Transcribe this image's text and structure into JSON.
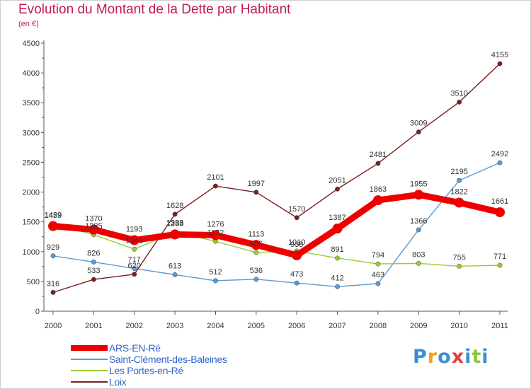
{
  "title": "Evolution du Montant de la Dette par Habitant",
  "subtitle": "(en €)",
  "logo": {
    "letters": [
      "P",
      "r",
      "o",
      "x",
      "i",
      "t",
      "i"
    ],
    "colors": [
      "#3a8fd4",
      "#f0a020",
      "#3a8fd4",
      "#e04040",
      "#3a8fd4",
      "#8cc63f",
      "#3a8fd4"
    ]
  },
  "chart_data": {
    "type": "line",
    "title": "Evolution du Montant de la Dette par Habitant",
    "subtitle": "(en €)",
    "xlabel": "",
    "ylabel": "",
    "x": [
      "2000",
      "2001",
      "2002",
      "2003",
      "2004",
      "2005",
      "2006",
      "2007",
      "2008",
      "2009",
      "2010",
      "2011"
    ],
    "yticks": [
      "0",
      "500",
      "1000",
      "1500",
      "2000",
      "2500",
      "3000",
      "3500",
      "4000",
      "4500"
    ],
    "ylim": [
      0,
      4500
    ],
    "grid": false,
    "legend_position": "bottom-left",
    "series": [
      {
        "name": "ARS-EN-Ré",
        "color": "#ee0000",
        "values": [
          1429,
          1370,
          1193,
          1288,
          1276,
          1113,
          938,
          1387,
          1863,
          1955,
          1822,
          1661
        ]
      },
      {
        "name": "Saint-Clément-des-Baleines",
        "color": "#5b9bd5",
        "values": [
          929,
          826,
          717,
          613,
          512,
          536,
          473,
          412,
          463,
          1366,
          2195,
          2492
        ]
      },
      {
        "name": "Les Portes-en-Ré",
        "color": "#9acd32",
        "values": [
          1459,
          1285,
          1041,
          1333,
          1172,
          986,
          1010,
          891,
          794,
          803,
          755,
          771
        ]
      },
      {
        "name": "Loix",
        "color": "#7a1f1f",
        "values": [
          316,
          533,
          620,
          1628,
          2101,
          1997,
          1570,
          2051,
          2481,
          3009,
          3510,
          4155
        ]
      }
    ]
  }
}
